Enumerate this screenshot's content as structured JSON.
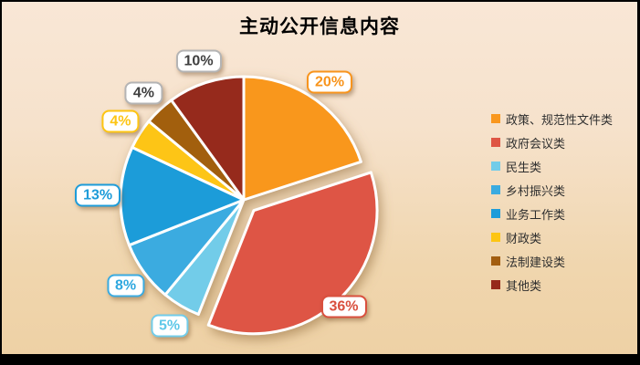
{
  "title": "主动公开信息内容",
  "colors": {
    "background_top": "#F9E7D6",
    "background_bottom": "#EED1A5",
    "frame_border": "#000000",
    "label_box_background": "#FFFFFF",
    "legend_text": "#2E2E2E",
    "slice_stroke": "#FFFFFF"
  },
  "chart_data": {
    "type": "pie",
    "title": "主动公开信息内容",
    "unit": "%",
    "legend_position": "right",
    "start_angle_deg": 0,
    "clockwise": true,
    "exploded_slice": "政府会议类",
    "slices": [
      {
        "label": "政策、规范性文件类",
        "value": 20,
        "display": "20%",
        "color": "#F9971E",
        "label_text_color": "#F8941C",
        "label_border_color": "#F8941C",
        "exploded": false
      },
      {
        "label": "政府会议类",
        "value": 36,
        "display": "36%",
        "color": "#DE5544",
        "label_text_color": "#D94F3D",
        "label_border_color": "#D94F3D",
        "exploded": true
      },
      {
        "label": "民生类",
        "value": 5,
        "display": "5%",
        "color": "#72CCE9",
        "label_text_color": "#5FC8E8",
        "label_border_color": "#72CCE9",
        "exploded": false
      },
      {
        "label": "乡村振兴类",
        "value": 8,
        "display": "8%",
        "color": "#3BABE0",
        "label_text_color": "#2FA8DF",
        "label_border_color": "#3BABE0",
        "exploded": false
      },
      {
        "label": "业务工作类",
        "value": 13,
        "display": "13%",
        "color": "#1E9CD9",
        "label_text_color": "#1E9CD9",
        "label_border_color": "#1E9CD9",
        "exploded": false
      },
      {
        "label": "财政类",
        "value": 4,
        "display": "4%",
        "color": "#FDC513",
        "label_text_color": "#FDC513",
        "label_border_color": "#FDC513",
        "exploded": false
      },
      {
        "label": "法制建设类",
        "value": 4,
        "display": "4%",
        "color": "#A25E10",
        "label_text_color": "#3F3F3F",
        "label_border_color": "#B4B4B4",
        "exploded": false
      },
      {
        "label": "其他类",
        "value": 10,
        "display": "10%",
        "color": "#962A1B",
        "label_text_color": "#3F3F3F",
        "label_border_color": "#B4B4B4",
        "exploded": false
      }
    ]
  }
}
